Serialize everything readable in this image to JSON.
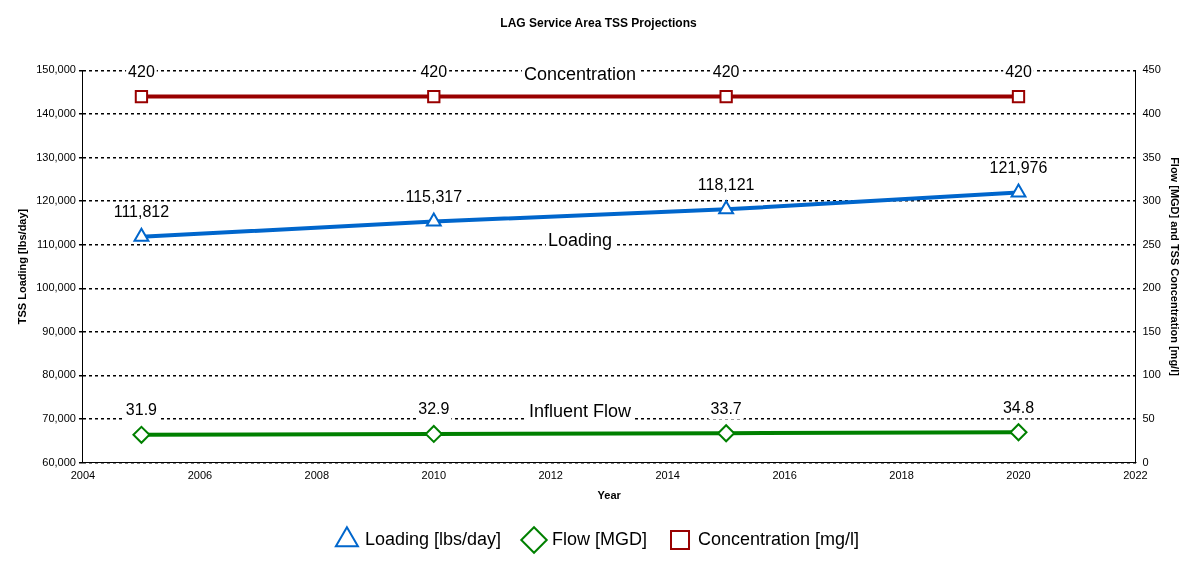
{
  "chart_data": {
    "type": "line",
    "title": "LAG Service Area TSS Projections",
    "xlabel": "Year",
    "ylabel": "TSS Loading [lbs/day]",
    "y2label": "Flow [MGD] and TSS Concentration [mg/l]",
    "x": [
      2005,
      2010,
      2015,
      2020
    ],
    "series": [
      {
        "name": "Loading [lbs/day]",
        "color": "#0066cc",
        "marker": "triangle",
        "values": [
          111812,
          115317,
          118121,
          121976
        ],
        "value_labels": [
          "111,812",
          "115,317",
          "118,121",
          "121,976"
        ]
      },
      {
        "name": "Flow [MGD]",
        "color": "#008000",
        "marker": "diamond",
        "axis": "y2",
        "values": [
          31.9,
          32.9,
          33.7,
          34.8
        ],
        "value_labels": [
          "31.9",
          "32.9",
          "33.7",
          "34.8"
        ]
      },
      {
        "name": "Concentration [mg/l]",
        "color": "#990000",
        "marker": "square",
        "axis": "y2",
        "values": [
          420,
          420,
          420,
          420
        ],
        "value_labels": [
          "420",
          "420",
          "420",
          "420"
        ]
      }
    ],
    "xlim": [
      2004,
      2022
    ],
    "xticks": [
      2004,
      2006,
      2008,
      2010,
      2012,
      2014,
      2016,
      2018,
      2020,
      2022
    ],
    "ylim": [
      60000,
      150000
    ],
    "yticks": [
      {
        "value": 60000,
        "label": "60,000"
      },
      {
        "value": 70000,
        "label": "70,000"
      },
      {
        "value": 80000,
        "label": "80,000"
      },
      {
        "value": 90000,
        "label": "90,000"
      },
      {
        "value": 100000,
        "label": "100,000"
      },
      {
        "value": 110000,
        "label": "110,000"
      },
      {
        "value": 120000,
        "label": "120,000"
      },
      {
        "value": 130000,
        "label": "130,000"
      },
      {
        "value": 140000,
        "label": "140,000"
      },
      {
        "value": 150000,
        "label": "150,000"
      }
    ],
    "y2lim": [
      0,
      450
    ],
    "y2ticks": [
      0,
      50,
      100,
      150,
      200,
      250,
      300,
      350,
      400,
      450
    ],
    "grid": "y",
    "legend": "bottom",
    "annotations": [
      "Loading",
      "Influent Flow",
      "Concentration"
    ]
  }
}
